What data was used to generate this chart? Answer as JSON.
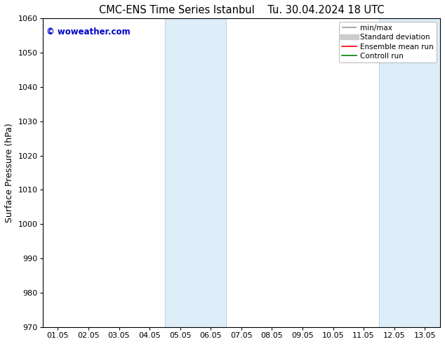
{
  "title_left": "CMC-ENS Time Series Istanbul",
  "title_right": "Tu. 30.04.2024 18 UTC",
  "ylabel": "Surface Pressure (hPa)",
  "ylim": [
    970,
    1060
  ],
  "yticks": [
    970,
    980,
    990,
    1000,
    1010,
    1020,
    1030,
    1040,
    1050,
    1060
  ],
  "xlim": [
    -0.5,
    12.5
  ],
  "xtick_labels": [
    "01.05",
    "02.05",
    "03.05",
    "04.05",
    "05.05",
    "06.05",
    "07.05",
    "08.05",
    "09.05",
    "10.05",
    "11.05",
    "12.05",
    "13.05"
  ],
  "xtick_positions": [
    0,
    1,
    2,
    3,
    4,
    5,
    6,
    7,
    8,
    9,
    10,
    11,
    12
  ],
  "shaded_regions": [
    {
      "xmin": 3.5,
      "xmax": 5.5
    },
    {
      "xmin": 10.5,
      "xmax": 12.5
    }
  ],
  "shade_color": "#ddeef8",
  "shade_edge_color": "#b8cfe0",
  "watermark_text": "© woweather.com",
  "watermark_color": "#0000cc",
  "bg_color": "#ffffff",
  "plot_bg_color": "#ffffff",
  "title_fontsize": 10.5,
  "label_fontsize": 9,
  "tick_fontsize": 8,
  "legend_fontsize": 7.5,
  "legend_labels": [
    "min/max",
    "Standard deviation",
    "Ensemble mean run",
    "Controll run"
  ],
  "legend_colors": [
    "#999999",
    "#cccccc",
    "#ff0000",
    "#008000"
  ]
}
